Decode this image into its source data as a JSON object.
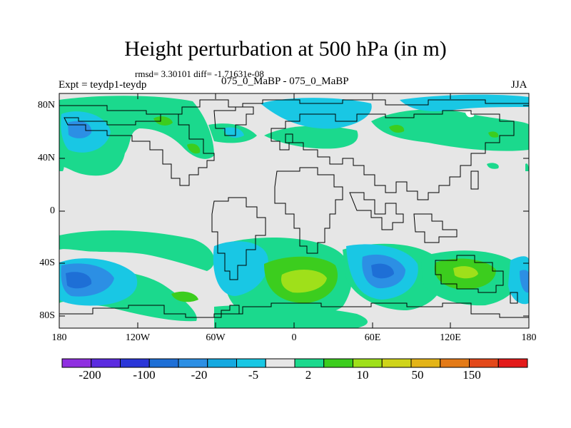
{
  "title": "Height perturbation at 500 hPa (in m)",
  "stats": "rmsd= 3.30101 diff= -1.71631e-08",
  "expt": "Expt = teydp1-teydp",
  "period": "075_0_MaBP - 075_0_MaBP",
  "season": "JJA",
  "lat_ticks": [
    "80N",
    "40N",
    "0",
    "40S",
    "80S"
  ],
  "lon_ticks": [
    "180",
    "120W",
    "60W",
    "0",
    "60E",
    "120E",
    "180"
  ],
  "colorbar": {
    "colors": [
      "#8f2fe0",
      "#5b2be0",
      "#2a36d8",
      "#1e6fd6",
      "#2c8fe4",
      "#15a9e0",
      "#19c7e4",
      "#e6e6e6",
      "#1bd98d",
      "#3ccd1e",
      "#9fe01a",
      "#cfd41a",
      "#e3b417",
      "#e37a17",
      "#e3481a",
      "#e31a1a"
    ],
    "labels": [
      "-200",
      "-100",
      "-20",
      "-5",
      "2",
      "10",
      "50",
      "150"
    ]
  },
  "map_colors": {
    "background": "#e6e6e6",
    "green": "#1bd98d",
    "lightgreen": "#3ccd1e",
    "yellowgreen": "#9fe01a",
    "cyan": "#19c7e4",
    "lightblue": "#2c8fe4",
    "blue": "#1e6fd6"
  }
}
